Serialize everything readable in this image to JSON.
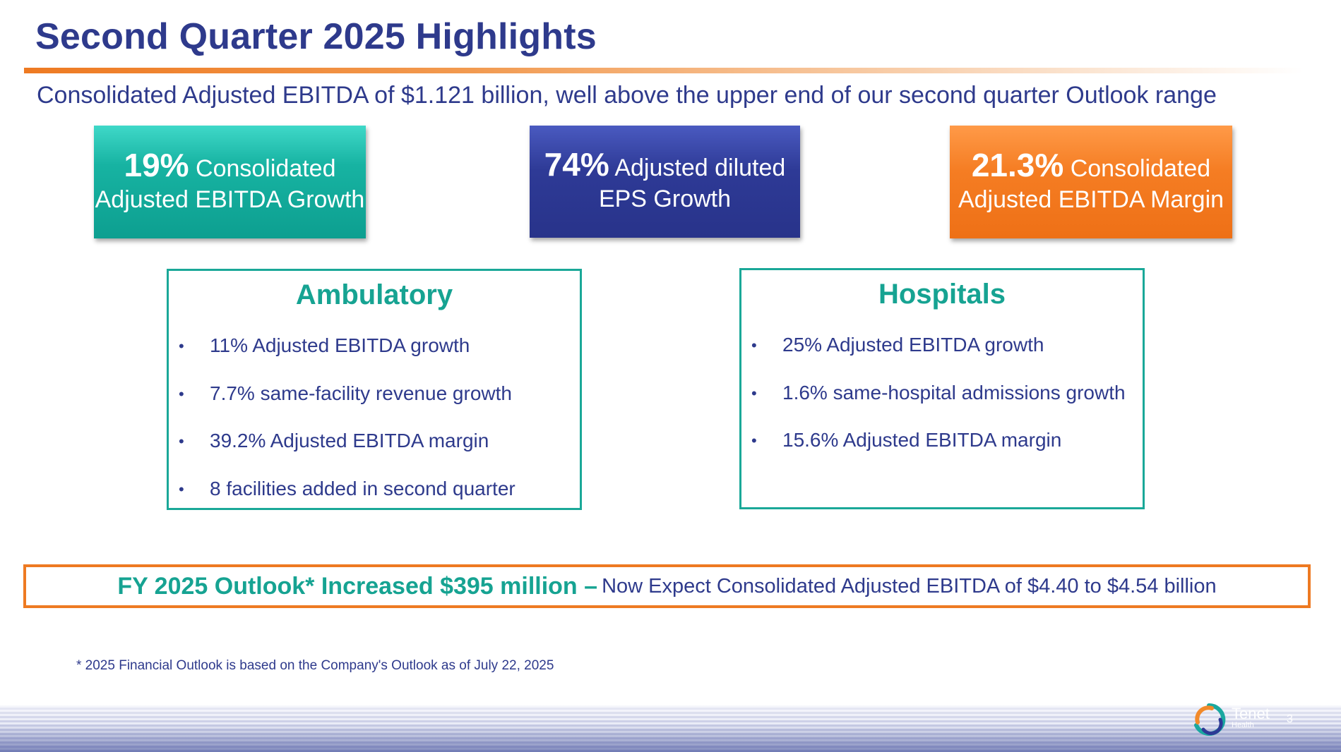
{
  "title": "Second Quarter 2025 Highlights",
  "subtitle": "Consolidated Adjusted EBITDA of $1.121 billion, well above the upper end of our second quarter Outlook range",
  "kpis": [
    {
      "value": "19%",
      "label": "Consolidated Adjusted EBITDA Growth",
      "color": "#17b3a2"
    },
    {
      "value": "74%",
      "label": "Adjusted diluted EPS Growth",
      "color": "#2e3a96"
    },
    {
      "value": "21.3%",
      "label": "Consolidated Adjusted EBITDA Margin",
      "color": "#f57d23"
    }
  ],
  "ambulatory": {
    "title": "Ambulatory",
    "bullets": [
      "11% Adjusted EBITDA growth",
      "7.7% same-facility revenue growth",
      "39.2% Adjusted EBITDA margin",
      "8 facilities added in second quarter"
    ]
  },
  "hospitals": {
    "title": "Hospitals",
    "bullets": [
      "25% Adjusted EBITDA growth",
      "1.6% same-hospital admissions growth",
      "15.6% Adjusted EBITDA margin"
    ]
  },
  "outlook": {
    "bold": "FY 2025 Outlook* Increased $395 million –",
    "rest": "Now Expect Consolidated Adjusted EBITDA of $4.40 to $4.54 billion"
  },
  "footnote": "* 2025 Financial Outlook is based on the Company's Outlook as of July 22, 2025",
  "logo": {
    "name": "Tenet",
    "sub": "Health",
    "icon": "tenet-logo-icon"
  },
  "page_number": "3",
  "colors": {
    "navy": "#2e3a8c",
    "teal": "#16a392",
    "orange": "#ee7a22"
  }
}
